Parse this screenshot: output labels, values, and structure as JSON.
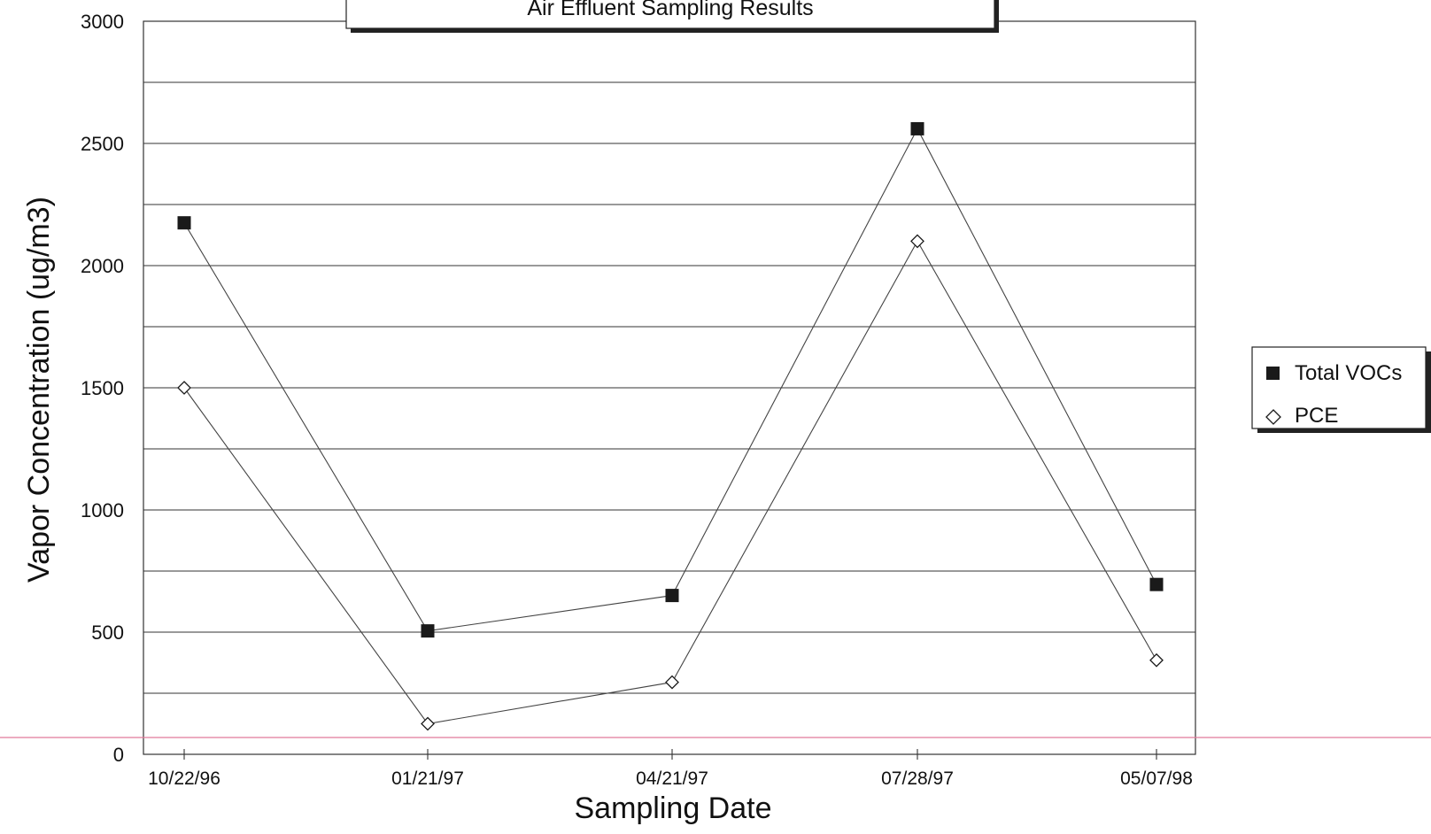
{
  "chart_data": {
    "type": "line",
    "title": "Air Effluent Sampling Results",
    "xlabel": "Sampling Date",
    "ylabel": "Vapor Concentration (ug/m3)",
    "categories": [
      "10/22/96",
      "01/21/97",
      "04/21/97",
      "07/28/97",
      "05/07/98"
    ],
    "ylim": [
      0,
      3000
    ],
    "yticks": [
      0,
      500,
      1000,
      1500,
      2000,
      2500,
      3000
    ],
    "grid": true,
    "legend_position": "right",
    "series": [
      {
        "name": "Total VOCs",
        "marker": "filled-square",
        "color": "#1a1a1a",
        "values": [
          2175,
          505,
          650,
          2560,
          695
        ]
      },
      {
        "name": "PCE",
        "marker": "open-diamond",
        "color": "#1a1a1a",
        "values": [
          1500,
          125,
          295,
          2100,
          385
        ]
      }
    ]
  },
  "annotations": {
    "scan_line_color": "#e07a9a"
  }
}
